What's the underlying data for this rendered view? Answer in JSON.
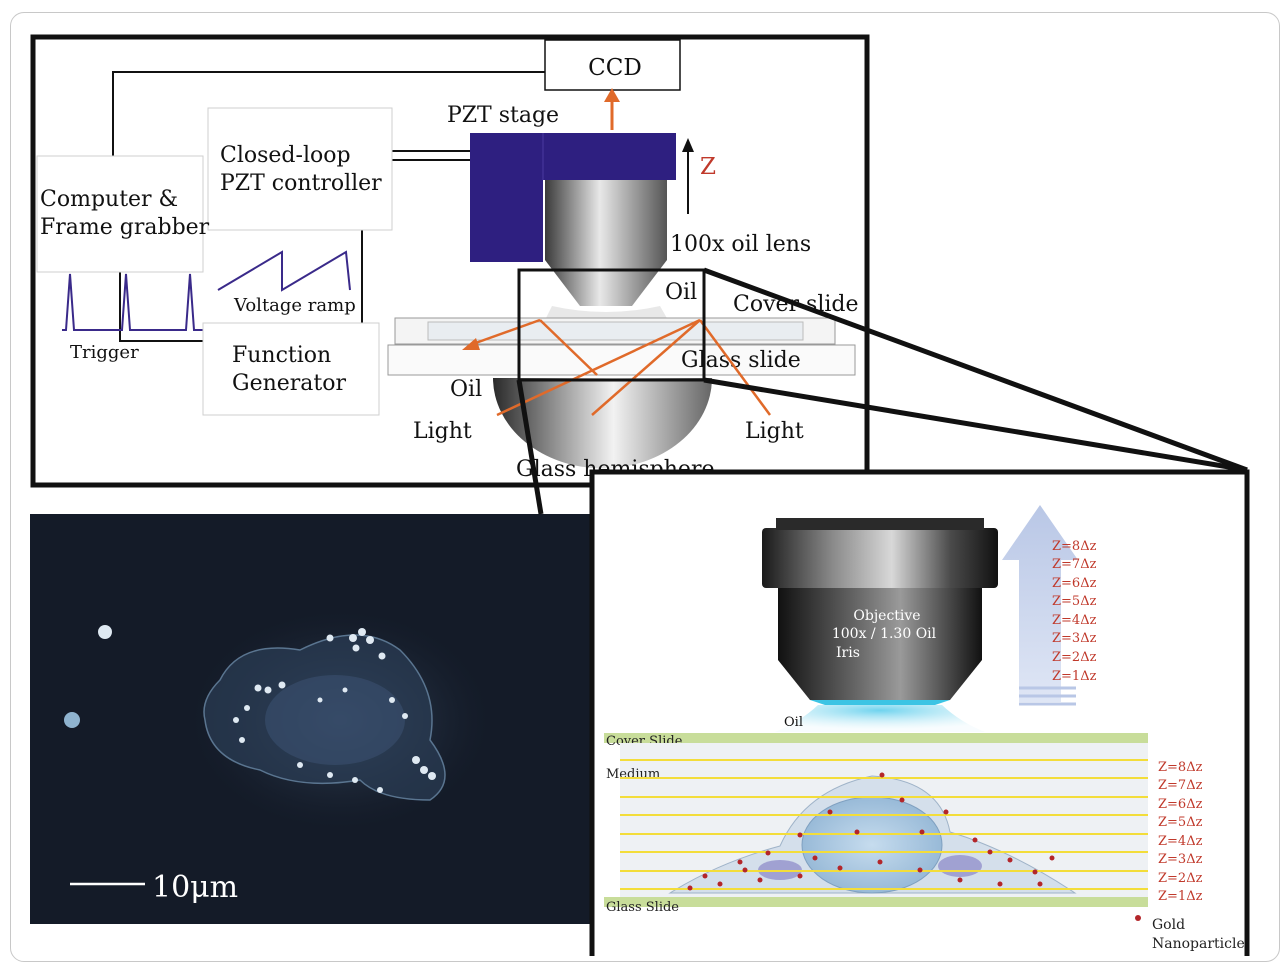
{
  "setup": {
    "ccd": "CCD",
    "pzt_stage": "PZT stage",
    "z_axis": "Z",
    "closed_loop_line1": "Closed-loop",
    "closed_loop_line2": "PZT controller",
    "computer_line1": "Computer &",
    "computer_line2": "Frame grabber",
    "voltage_ramp": "Voltage ramp",
    "trigger": "Trigger",
    "function_line1": "Function",
    "function_line2": "Generator",
    "lens": "100x oil lens",
    "oil_top": "Oil",
    "cover_slide": "Cover slide",
    "glass_slide": "Glass slide",
    "oil_bottom": "Oil",
    "light_left": "Light",
    "light_right": "Light",
    "glass_hemisphere": "Glass hemisphere"
  },
  "micrograph": {
    "scale_bar": "10μm"
  },
  "detail": {
    "objective_line1": "Objective",
    "objective_line2": "100x / 1.30 Oil",
    "objective_line3": "Iris",
    "oil": "Oil",
    "cover_slide": "Cover Slide",
    "medium": "Medium",
    "glass_slide": "Glass Slide",
    "gold_line1": "Gold",
    "gold_line2": "Nanoparticle",
    "z_steps_arrow": [
      "Z=8Δz",
      "Z=7Δz",
      "Z=6Δz",
      "Z=5Δz",
      "Z=4Δz",
      "Z=3Δz",
      "Z=2Δz",
      "Z=1Δz"
    ],
    "z_steps_planes": [
      "Z=8Δz",
      "Z=7Δz",
      "Z=6Δz",
      "Z=5Δz",
      "Z=4Δz",
      "Z=3Δz",
      "Z=2Δz",
      "Z=1Δz"
    ]
  },
  "colors": {
    "stage_purple": "#2e1f80",
    "light_ray": "#e06a2a",
    "z_label": "#c0392b",
    "slide_green": "#c8dd9a",
    "plane_yellow": "#f3dd3a",
    "particle_red": "#b3262a"
  }
}
